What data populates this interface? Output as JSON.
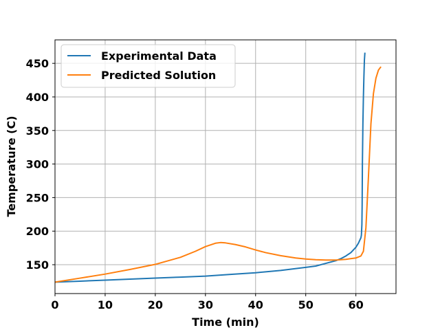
{
  "chart_data": {
    "type": "line",
    "title": "",
    "xlabel": "Time (min)",
    "ylabel": "Temperature (C)",
    "xlim": [
      0,
      68
    ],
    "ylim": [
      107,
      485
    ],
    "xticks": [
      0,
      10,
      20,
      30,
      40,
      50,
      60
    ],
    "yticks": [
      150,
      200,
      250,
      300,
      350,
      400,
      450
    ],
    "grid": true,
    "legend_position": "top-left",
    "series": [
      {
        "name": "Experimental Data",
        "color": "#1f77b4",
        "x": [
          0,
          5,
          10,
          15,
          20,
          25,
          30,
          35,
          40,
          45,
          50,
          52,
          54,
          56,
          57,
          58,
          59,
          60,
          60.5,
          61,
          61.1,
          61.2,
          61.25,
          61.3,
          61.4,
          61.5,
          61.6,
          61.7,
          61.8
        ],
        "y": [
          124,
          125.5,
          127,
          128.5,
          130,
          131.5,
          133,
          135.5,
          138,
          141.5,
          146,
          148,
          152,
          156,
          159,
          163,
          168,
          176,
          182,
          190,
          194,
          210,
          240,
          300,
          360,
          400,
          430,
          455,
          466
        ]
      },
      {
        "name": "Predicted Solution",
        "color": "#ff7f0e",
        "x": [
          0,
          5,
          10,
          15,
          20,
          25,
          28,
          30,
          32,
          33,
          34,
          36,
          38,
          40,
          42,
          45,
          48,
          50,
          52,
          54,
          56,
          58,
          60,
          61,
          61.5,
          62,
          62.5,
          63,
          63.5,
          64,
          64.5,
          65
        ],
        "y": [
          124,
          130,
          136,
          143,
          150.5,
          161,
          170,
          177,
          182,
          183,
          182.5,
          180,
          176.5,
          172,
          168,
          163.5,
          160,
          158.5,
          157.5,
          157,
          157,
          158,
          160,
          163,
          170,
          205,
          280,
          360,
          405,
          428,
          440,
          445
        ]
      }
    ]
  }
}
